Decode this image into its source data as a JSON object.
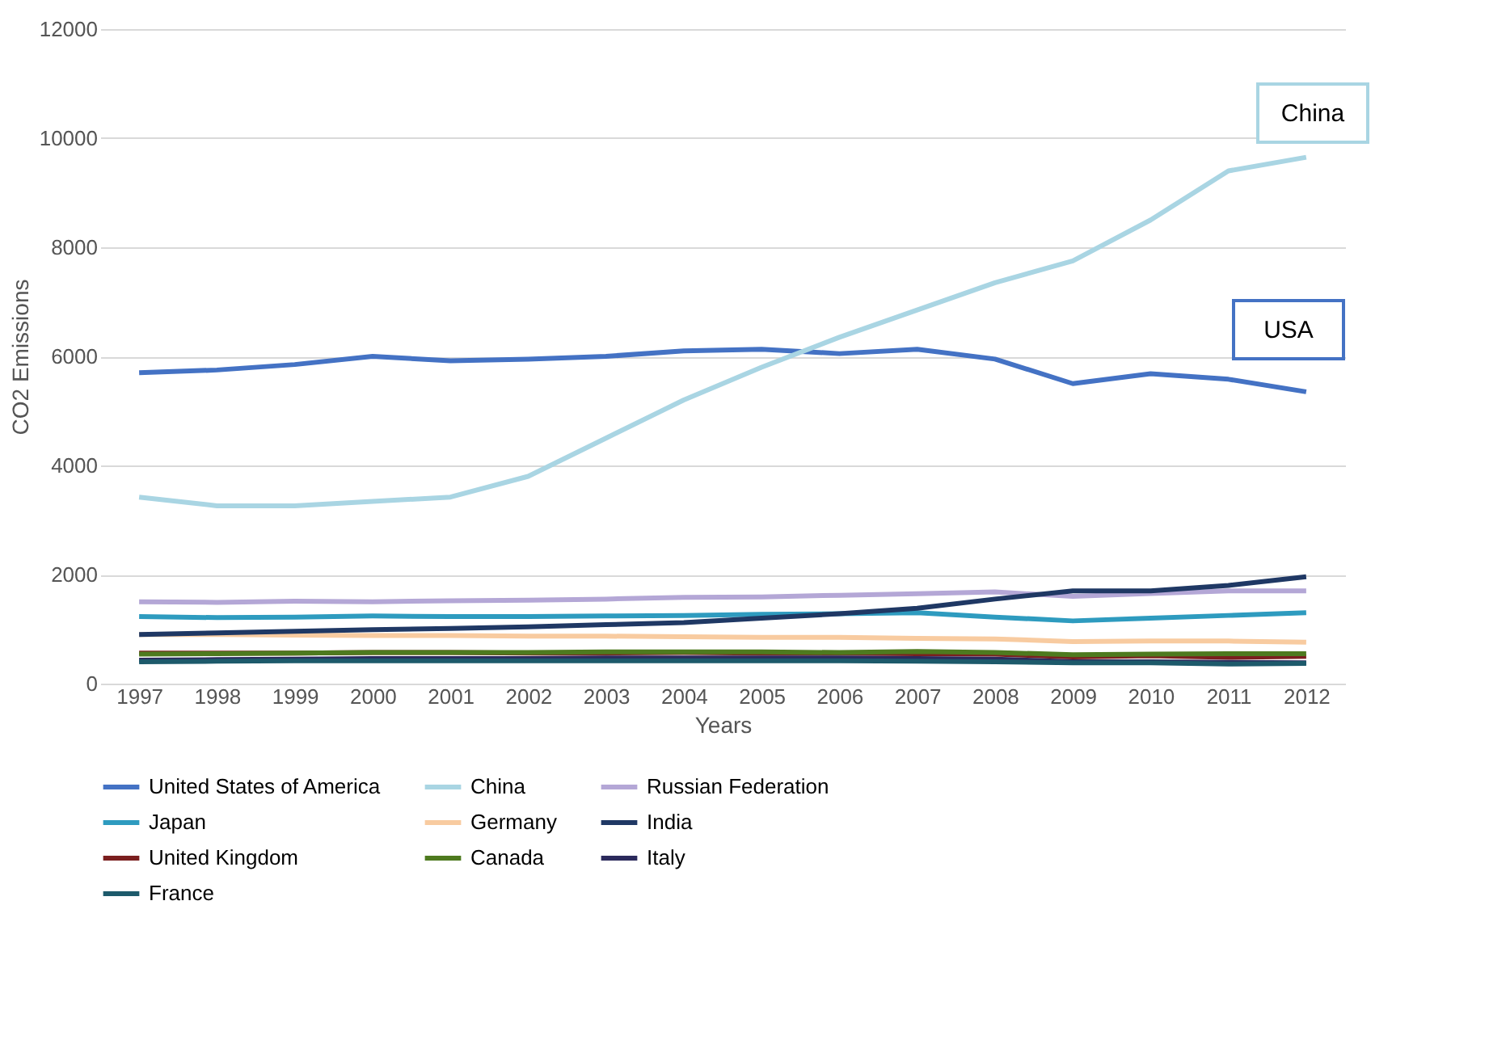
{
  "chart_data": {
    "type": "line",
    "xlabel": "Years",
    "ylabel": "CO2 Emissions",
    "categories": [
      "1997",
      "1998",
      "1999",
      "2000",
      "2001",
      "2002",
      "2003",
      "2004",
      "2005",
      "2006",
      "2007",
      "2008",
      "2009",
      "2010",
      "2011",
      "2012"
    ],
    "series": [
      {
        "name": "United States of America",
        "color": "#4472c4",
        "values": [
          5700,
          5750,
          5850,
          6000,
          5920,
          5950,
          6000,
          6100,
          6130,
          6050,
          6130,
          5950,
          5500,
          5680,
          5580,
          5350
        ]
      },
      {
        "name": "China",
        "color": "#a9d5e3",
        "values": [
          3420,
          3260,
          3260,
          3340,
          3420,
          3800,
          4500,
          5200,
          5800,
          6350,
          6850,
          7350,
          7750,
          8500,
          9400,
          9650
        ]
      },
      {
        "name": "Russian Federation",
        "color": "#b4a7d6",
        "values": [
          1500,
          1490,
          1510,
          1500,
          1520,
          1530,
          1550,
          1580,
          1590,
          1620,
          1650,
          1680,
          1600,
          1650,
          1700,
          1700
        ]
      },
      {
        "name": "Japan",
        "color": "#2e9bbf",
        "values": [
          1230,
          1210,
          1220,
          1240,
          1230,
          1230,
          1240,
          1250,
          1270,
          1280,
          1300,
          1220,
          1150,
          1200,
          1250,
          1300
        ]
      },
      {
        "name": "Germany",
        "color": "#f8cba0",
        "values": [
          900,
          900,
          890,
          880,
          880,
          870,
          870,
          860,
          850,
          850,
          830,
          820,
          770,
          780,
          780,
          760
        ]
      },
      {
        "name": "India",
        "color": "#1f3864",
        "values": [
          900,
          930,
          960,
          990,
          1010,
          1040,
          1080,
          1120,
          1200,
          1280,
          1380,
          1550,
          1700,
          1700,
          1800,
          1960
        ]
      },
      {
        "name": "United Kingdom",
        "color": "#7b1f1f",
        "values": [
          560,
          560,
          560,
          570,
          570,
          560,
          560,
          570,
          560,
          560,
          550,
          540,
          490,
          510,
          480,
          500
        ]
      },
      {
        "name": "Canada",
        "color": "#4e7a1f",
        "values": [
          540,
          550,
          560,
          570,
          570,
          570,
          580,
          580,
          580,
          570,
          590,
          570,
          530,
          540,
          550,
          550
        ]
      },
      {
        "name": "Italy",
        "color": "#2b2a5c",
        "values": [
          430,
          440,
          450,
          460,
          460,
          460,
          470,
          470,
          470,
          470,
          460,
          450,
          400,
          400,
          390,
          380
        ]
      },
      {
        "name": "France",
        "color": "#1d5a6b",
        "values": [
          400,
          410,
          420,
          420,
          420,
          420,
          420,
          420,
          420,
          420,
          410,
          400,
          380,
          380,
          360,
          370
        ]
      }
    ],
    "ylim": [
      0,
      12000
    ],
    "yticks": [
      0,
      2000,
      4000,
      6000,
      8000,
      10000,
      12000
    ],
    "grid": "y",
    "legend": "bottom",
    "marker": "none",
    "line_style": "solid",
    "annotations": [
      "China",
      "USA"
    ]
  }
}
